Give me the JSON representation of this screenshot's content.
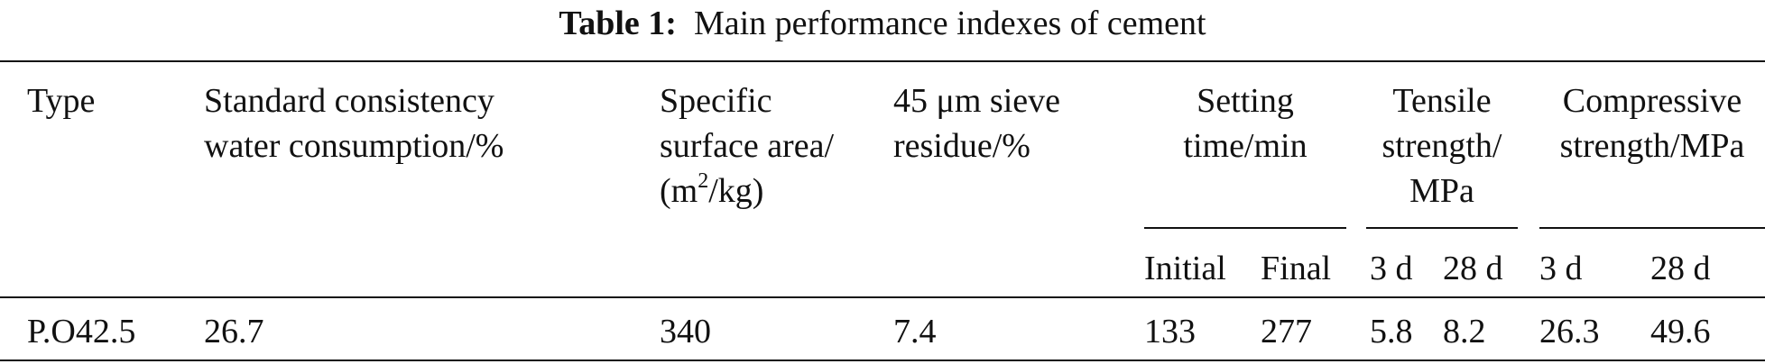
{
  "caption": {
    "label": "Table 1:",
    "text": "Main performance indexes of cement"
  },
  "headers": {
    "type": "Type",
    "consistency_1": "Standard consistency",
    "consistency_2": "water consumption/%",
    "ssa_1": "Specific",
    "ssa_2": "surface area/",
    "ssa_3_pre": "(m",
    "ssa_3_sup": "2",
    "ssa_3_post": "/kg)",
    "sieve_1": "45 μm sieve",
    "sieve_2": "residue/%",
    "setting_1": "Setting",
    "setting_2": "time/min",
    "tensile_1": "Tensile",
    "tensile_2": "strength/",
    "tensile_3": "MPa",
    "compressive_1": "Compressive",
    "compressive_2": "strength/MPa"
  },
  "subheaders": {
    "initial": "Initial",
    "final": "Final",
    "tensile_3d": "3 d",
    "tensile_28d": "28 d",
    "compressive_3d": "3 d",
    "compressive_28d": "28 d"
  },
  "row": {
    "type": "P.O42.5",
    "consistency": "26.7",
    "ssa": "340",
    "sieve": "7.4",
    "initial": "133",
    "final": "277",
    "tensile_3d": "5.8",
    "tensile_28d": "8.2",
    "compressive_3d": "26.3",
    "compressive_28d": "49.6"
  }
}
